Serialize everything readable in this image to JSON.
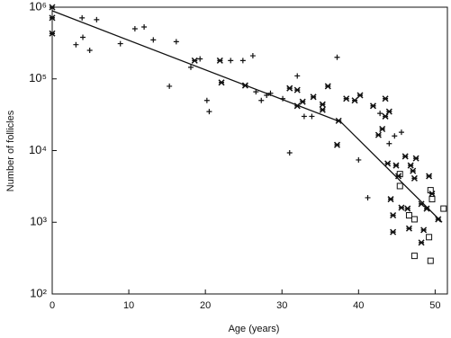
{
  "chart_data": {
    "type": "scatter",
    "xlabel": "Age (years)",
    "ylabel": "Number of follicles",
    "xlim": [
      0,
      51.6
    ],
    "xticks": [
      0,
      10,
      20,
      30,
      40,
      50
    ],
    "ylim": [
      100,
      1000000
    ],
    "log_y": true,
    "yticks": [
      {
        "value": 100,
        "label": "10²"
      },
      {
        "value": 1000,
        "label": "10³"
      },
      {
        "value": 10000,
        "label": "10⁴"
      },
      {
        "value": 100000,
        "label": "10⁵"
      },
      {
        "value": 1000000,
        "label": "10⁶"
      }
    ],
    "series": [
      {
        "marker": "plus",
        "color": "#111",
        "x": [
          3.1,
          3.9,
          4.0,
          4.9,
          5.8,
          8.9,
          10.8,
          12.0,
          13.2,
          15.3,
          16.2,
          18.1,
          19.3,
          20.2,
          20.5,
          23.3,
          24.9,
          26.2,
          26.6,
          27.3,
          28.0,
          28.5,
          30.1,
          31.0,
          32.0,
          32.9,
          33.9,
          37.2,
          40.0,
          41.2,
          42.8,
          44.0,
          44.7,
          45.6
        ],
        "values": [
          300000,
          710000,
          380000,
          250000,
          670000,
          310000,
          500000,
          530000,
          350000,
          79000,
          330000,
          145000,
          190000,
          50000,
          35000,
          180000,
          180000,
          210000,
          66000,
          50000,
          59000,
          63000,
          53000,
          9300,
          110000,
          30000,
          30000,
          200000,
          7400,
          2200,
          33000,
          12500,
          16000,
          18000
        ]
      },
      {
        "marker": "cross",
        "color": "#111",
        "x": [
          0,
          0,
          0,
          18.6,
          21.9,
          22.1,
          25.2,
          31.0,
          32.0,
          32.7,
          32.0,
          34.1,
          35.3,
          35.3,
          36.0,
          37.4,
          37.2,
          38.4,
          39.5,
          40.2,
          41.9,
          42.6,
          43.1,
          43.5,
          43.8,
          44.0,
          43.5,
          44.9,
          45.2,
          44.2,
          44.5,
          44.5,
          46.1,
          46.4,
          46.6,
          46.8,
          47.1,
          47.3,
          47.5,
          48.2,
          48.9,
          49.2,
          49.6,
          50.4,
          48.5,
          48.2,
          45.6
        ],
        "values": [
          1000000,
          710000,
          430000,
          180000,
          180000,
          89000,
          81000,
          74000,
          70000,
          48000,
          42000,
          56000,
          37000,
          44000,
          79000,
          26000,
          12000,
          53000,
          50000,
          59000,
          42000,
          16500,
          20000,
          53000,
          6600,
          35000,
          30000,
          6200,
          4400,
          2100,
          1250,
          730,
          8300,
          1550,
          820,
          6200,
          5200,
          4100,
          7800,
          1800,
          1550,
          4400,
          2500,
          1100,
          780,
          520,
          1600
        ]
      },
      {
        "marker": "square",
        "color": "#111",
        "x": [
          45.4,
          45.4,
          46.6,
          47.3,
          49.4,
          49.6,
          49.2,
          51.1,
          47.3,
          49.4
        ],
        "values": [
          4700,
          3200,
          1250,
          1100,
          2800,
          2100,
          620,
          1550,
          340,
          290
        ]
      },
      {
        "marker": "line",
        "color": "#111",
        "x": [
          0,
          37.7,
          50.9
        ],
        "values": [
          890000,
          25000,
          1000
        ]
      }
    ]
  }
}
